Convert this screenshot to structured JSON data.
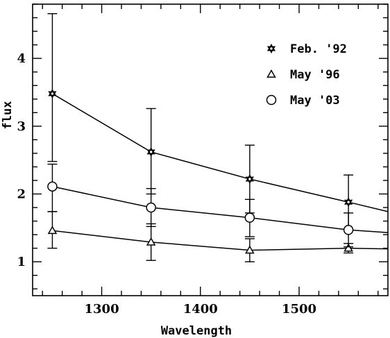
{
  "chart_data": {
    "type": "line",
    "title": "",
    "xlabel": "Wavelength",
    "ylabel": "flux",
    "xlim": [
      1230,
      1590
    ],
    "ylim": [
      0.5,
      4.8
    ],
    "xticks": [
      1300,
      1400,
      1500
    ],
    "yticks": [
      1,
      2,
      3,
      4
    ],
    "x_minor_step": 20,
    "y_minor_step": 0.2,
    "grid": false,
    "legend_position": "top-right",
    "series": [
      {
        "name": "Feb. '92",
        "marker": "star",
        "points": [
          {
            "x": 1250,
            "y": 3.48,
            "err_lo": 2.48,
            "err_hi": 4.66
          },
          {
            "x": 1350,
            "y": 2.62,
            "err_lo": 2.0,
            "err_hi": 3.26
          },
          {
            "x": 1450,
            "y": 2.22,
            "err_lo": 1.72,
            "err_hi": 2.72
          },
          {
            "x": 1550,
            "y": 1.88,
            "err_lo": 1.47,
            "err_hi": 2.28
          },
          {
            "x": 1590,
            "y": 1.74
          }
        ]
      },
      {
        "name": "May '96",
        "marker": "triangle",
        "points": [
          {
            "x": 1250,
            "y": 1.46,
            "err_lo": 1.2,
            "err_hi": 1.74
          },
          {
            "x": 1350,
            "y": 1.29,
            "err_lo": 1.02,
            "err_hi": 1.56
          },
          {
            "x": 1450,
            "y": 1.17,
            "err_lo": 1.0,
            "err_hi": 1.34
          },
          {
            "x": 1550,
            "y": 1.2,
            "err_lo": 1.13,
            "err_hi": 1.27
          },
          {
            "x": 1590,
            "y": 1.19
          }
        ]
      },
      {
        "name": "May '03",
        "marker": "circle",
        "points": [
          {
            "x": 1250,
            "y": 2.11,
            "err_lo": 1.74,
            "err_hi": 2.44
          },
          {
            "x": 1350,
            "y": 1.8,
            "err_lo": 1.52,
            "err_hi": 2.08
          },
          {
            "x": 1450,
            "y": 1.65,
            "err_lo": 1.37,
            "err_hi": 1.92
          },
          {
            "x": 1550,
            "y": 1.47,
            "err_lo": 1.22,
            "err_hi": 1.72
          },
          {
            "x": 1590,
            "y": 1.43
          }
        ]
      }
    ]
  }
}
